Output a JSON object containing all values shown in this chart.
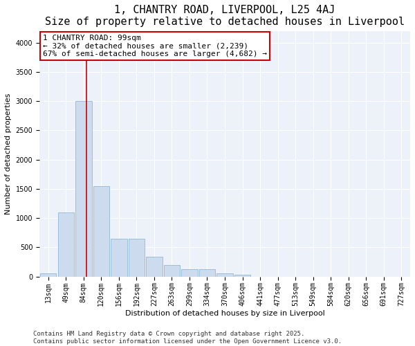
{
  "title": "1, CHANTRY ROAD, LIVERPOOL, L25 4AJ",
  "subtitle": "Size of property relative to detached houses in Liverpool",
  "xlabel": "Distribution of detached houses by size in Liverpool",
  "ylabel": "Number of detached properties",
  "categories": [
    "13sqm",
    "49sqm",
    "84sqm",
    "120sqm",
    "156sqm",
    "192sqm",
    "227sqm",
    "263sqm",
    "299sqm",
    "334sqm",
    "370sqm",
    "406sqm",
    "441sqm",
    "477sqm",
    "513sqm",
    "549sqm",
    "584sqm",
    "620sqm",
    "656sqm",
    "691sqm",
    "727sqm"
  ],
  "values": [
    55,
    1100,
    3000,
    1550,
    650,
    650,
    340,
    200,
    120,
    120,
    55,
    30,
    0,
    0,
    0,
    0,
    0,
    0,
    0,
    0,
    0
  ],
  "bar_color": "#ccdcee",
  "bar_edge_color": "#8fb8d8",
  "vline_color": "#cc0000",
  "vline_pos": 2.15,
  "annotation_text": "1 CHANTRY ROAD: 99sqm\n← 32% of detached houses are smaller (2,239)\n67% of semi-detached houses are larger (4,682) →",
  "annotation_box_edgecolor": "#cc0000",
  "ylim": [
    0,
    4200
  ],
  "yticks": [
    0,
    500,
    1000,
    1500,
    2000,
    2500,
    3000,
    3500,
    4000
  ],
  "footnote_line1": "Contains HM Land Registry data © Crown copyright and database right 2025.",
  "footnote_line2": "Contains public sector information licensed under the Open Government Licence v3.0.",
  "background_color": "#edf2fa",
  "grid_color": "#ffffff",
  "title_fontsize": 11,
  "xlabel_fontsize": 8,
  "ylabel_fontsize": 8,
  "tick_fontsize": 7,
  "annotation_fontsize": 8,
  "footnote_fontsize": 6.5
}
